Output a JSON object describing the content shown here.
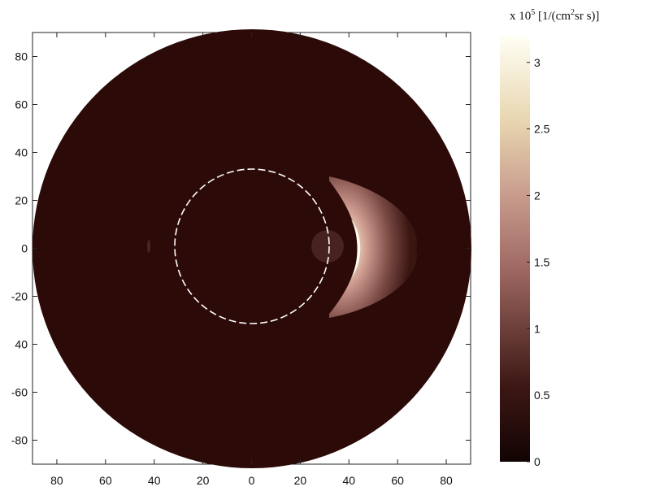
{
  "chart_data": {
    "type": "heatmap",
    "title": "",
    "xlabel": "",
    "ylabel": "",
    "x_ticks": [
      "80",
      "60",
      "40",
      "20",
      "0",
      "20",
      "40",
      "60",
      "80"
    ],
    "y_ticks": [
      "80",
      "60",
      "40",
      "20",
      "0",
      "-20",
      "40",
      "-60",
      "-80"
    ],
    "xlim": [
      -90,
      90
    ],
    "ylim": [
      -90,
      90
    ],
    "disk_radius": 90,
    "inner_circle_radius": 32,
    "background_value": 0,
    "crescent": {
      "center_x": 38,
      "center_y": 0,
      "peak_x": 40,
      "peak_value": 3.2,
      "extent_x": [
        30,
        68
      ],
      "extent_y": [
        -28,
        30
      ]
    },
    "colorbar": {
      "scale_prefix": "x 10",
      "exponent": "5",
      "unit_main": "[1/(cm",
      "unit_sup": "2",
      "unit_tail": "sr s)]",
      "ticks": [
        "3",
        "2.5",
        "2",
        "1.5",
        "1",
        "0.5",
        "0"
      ],
      "tick_values": [
        3,
        2.5,
        2,
        1.5,
        1,
        0.5,
        0
      ],
      "range": [
        0,
        3.2
      ]
    },
    "colors": {
      "background": "#2b0a08",
      "low": "#3a1512",
      "mid": "#b07a73",
      "high": "#f3e3c6",
      "peak": "#ffffe8",
      "inner_circle": "#ffffff"
    }
  }
}
